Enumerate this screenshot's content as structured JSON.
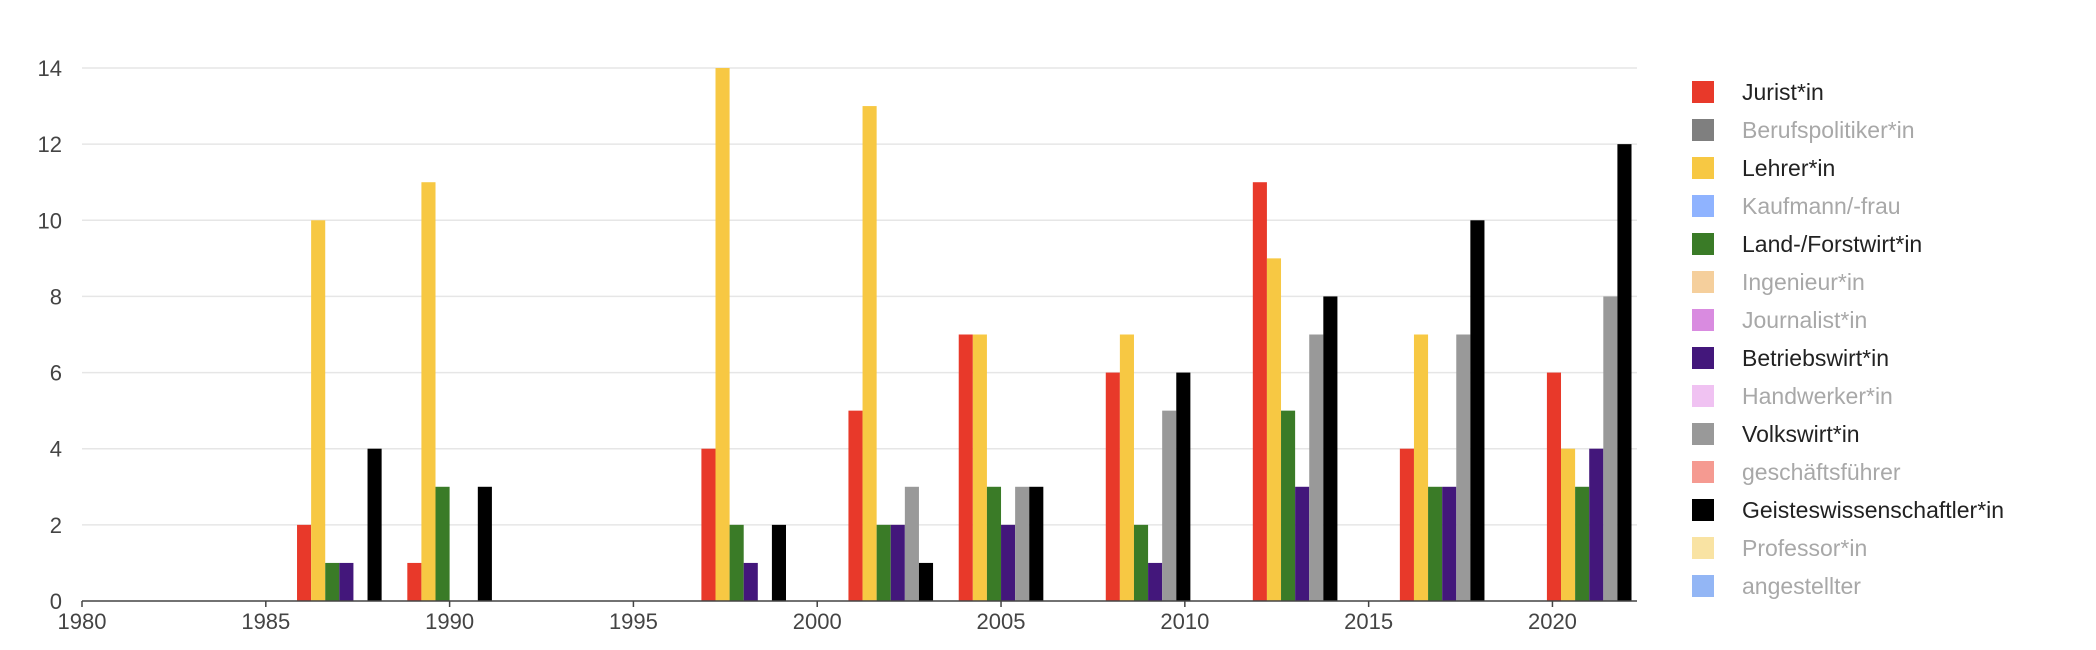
{
  "chart_data": {
    "type": "bar",
    "title": "",
    "xlabel": "",
    "ylabel": "",
    "xlim": [
      1980,
      2022.3
    ],
    "ylim": [
      0,
      14
    ],
    "x_ticks": [
      "1980",
      "1985",
      "1990",
      "1995",
      "2000",
      "2005",
      "2010",
      "2015",
      "2020"
    ],
    "y_ticks": [
      "0",
      "2",
      "4",
      "6",
      "8",
      "10",
      "12",
      "14"
    ],
    "grid": "horizontal",
    "legend_position": "right",
    "groups": [
      1987,
      1990,
      1998,
      2002,
      2005,
      2009,
      2013,
      2017,
      2021
    ],
    "series": [
      {
        "name": "Jurist*in",
        "color": "#e8392a",
        "visible": true,
        "values": [
          2,
          1,
          4,
          5,
          7,
          6,
          11,
          4,
          6
        ]
      },
      {
        "name": "Berufspolitiker*in",
        "color": "#7f7f7f",
        "visible": false,
        "values": [
          0,
          0,
          0,
          0,
          0,
          0,
          0,
          0,
          0
        ]
      },
      {
        "name": "Lehrer*in",
        "color": "#f7c843",
        "visible": true,
        "values": [
          10,
          11,
          14,
          13,
          7,
          7,
          9,
          7,
          4
        ]
      },
      {
        "name": "Kaufmann/-frau",
        "color": "#8fb3ff",
        "visible": false,
        "values": [
          0,
          0,
          0,
          0,
          0,
          0,
          0,
          0,
          0
        ]
      },
      {
        "name": "Land-/Forstwirt*in",
        "color": "#3a7b27",
        "visible": true,
        "values": [
          1,
          3,
          2,
          2,
          3,
          2,
          5,
          3,
          3
        ]
      },
      {
        "name": "Ingenieur*in",
        "color": "#f5cf9c",
        "visible": false,
        "values": [
          0,
          0,
          0,
          0,
          0,
          0,
          0,
          0,
          0
        ]
      },
      {
        "name": "Journalist*in",
        "color": "#d98be0",
        "visible": false,
        "values": [
          0,
          0,
          0,
          0,
          0,
          0,
          0,
          0,
          0
        ]
      },
      {
        "name": "Betriebswirt*in",
        "color": "#43177b",
        "visible": true,
        "values": [
          1,
          0,
          1,
          2,
          2,
          1,
          3,
          3,
          4
        ]
      },
      {
        "name": "Handwerker*in",
        "color": "#f0c2f2",
        "visible": false,
        "values": [
          0,
          0,
          0,
          0,
          0,
          0,
          0,
          0,
          0
        ]
      },
      {
        "name": "Volkswirt*in",
        "color": "#999999",
        "visible": true,
        "values": [
          0,
          0,
          0,
          3,
          3,
          5,
          7,
          7,
          8
        ]
      },
      {
        "name": "geschäftsführer",
        "color": "#f59a91",
        "visible": false,
        "values": [
          0,
          0,
          0,
          0,
          0,
          0,
          0,
          0,
          0
        ]
      },
      {
        "name": "Geisteswissenschaftler*in",
        "color": "#000000",
        "visible": true,
        "values": [
          4,
          3,
          2,
          1,
          3,
          6,
          8,
          10,
          12
        ]
      },
      {
        "name": "Professor*in",
        "color": "#f9e3a3",
        "visible": false,
        "values": [
          0,
          0,
          0,
          0,
          0,
          0,
          0,
          0,
          0
        ]
      },
      {
        "name": "angestellter",
        "color": "#93b6f5",
        "visible": false,
        "values": [
          0,
          0,
          0,
          0,
          0,
          0,
          0,
          0,
          0
        ]
      }
    ]
  }
}
